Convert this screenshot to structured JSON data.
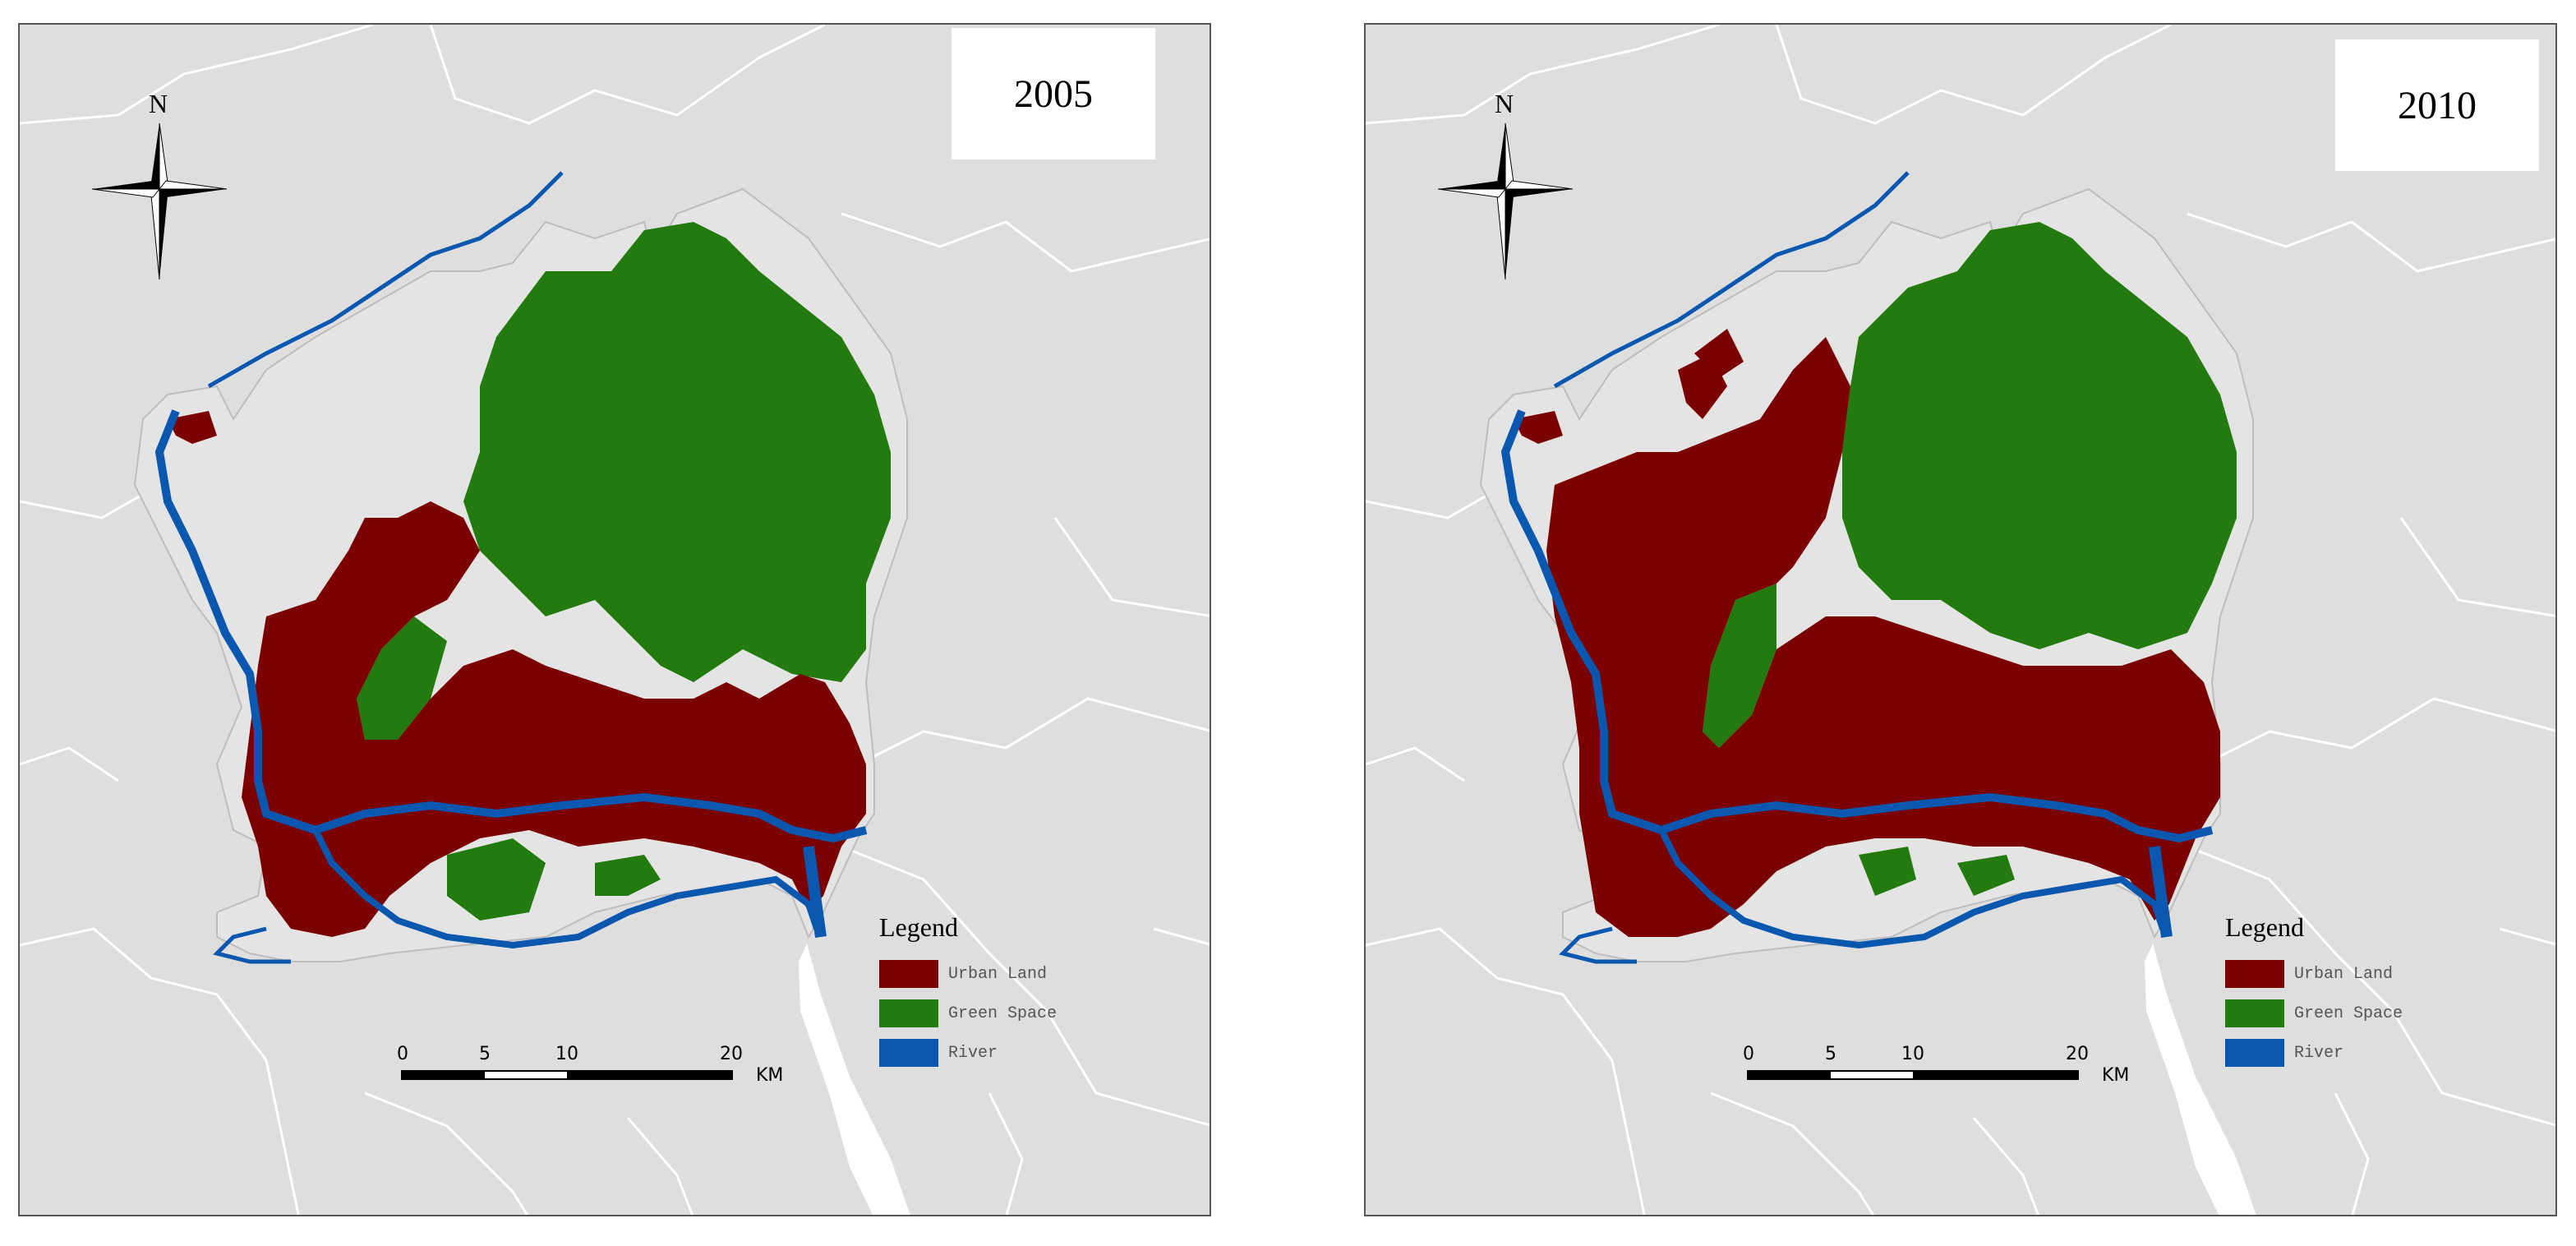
{
  "colors": {
    "urban_land": "#7b0000",
    "green_space": "#237a0f",
    "river": "#0a57b0",
    "background": "#dedede",
    "boundary": "#ffffff"
  },
  "panels": [
    {
      "year": "2005",
      "north_label": "N",
      "legend": {
        "title": "Legend",
        "items": [
          {
            "label": "Urban Land",
            "color": "#7b0000"
          },
          {
            "label": "Green Space",
            "color": "#237a0f"
          },
          {
            "label": "River",
            "color": "#0a57b0"
          }
        ]
      },
      "scale": {
        "ticks": [
          "0",
          "5",
          "10",
          "20"
        ],
        "unit": "KM"
      }
    },
    {
      "year": "2010",
      "north_label": "N",
      "legend": {
        "title": "Legend",
        "items": [
          {
            "label": "Urban Land",
            "color": "#7b0000"
          },
          {
            "label": "Green Space",
            "color": "#237a0f"
          },
          {
            "label": "River",
            "color": "#0a57b0"
          }
        ]
      },
      "scale": {
        "ticks": [
          "0",
          "5",
          "10",
          "20"
        ],
        "unit": "KM"
      }
    }
  ]
}
